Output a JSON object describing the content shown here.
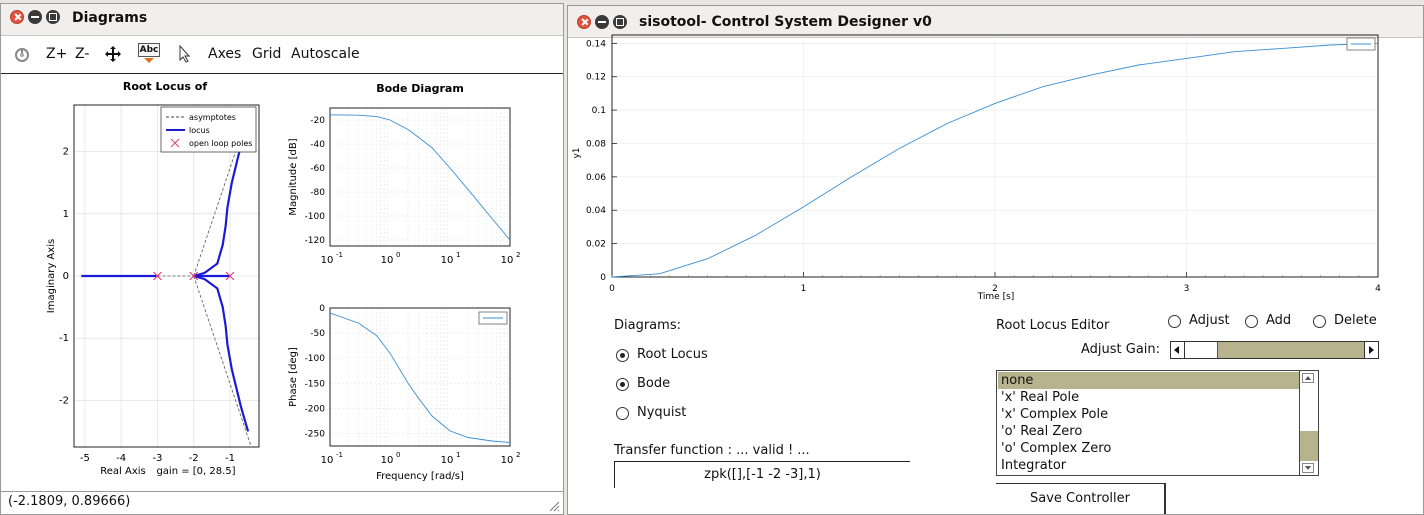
{
  "left_window": {
    "title": "Diagrams",
    "toolbar": {
      "zoom_in": "Z+",
      "zoom_out": "Z-",
      "axes": "Axes",
      "grid": "Grid",
      "autoscale": "Autoscale",
      "text_tool_label": "Abc"
    },
    "status": "(-2.1809, 0.89666)"
  },
  "root_locus_plot": {
    "title": "Root Locus of",
    "xlabel": "Real Axis",
    "ylabel": "Imaginary Axis",
    "gain_label": "gain = [0, 28.5]",
    "xticks": [
      "-5",
      "-4",
      "-3",
      "-2",
      "-1"
    ],
    "yticks": [
      "2",
      "1",
      "0",
      "-1",
      "-2"
    ],
    "legend": [
      "asymptotes",
      "locus",
      "open loop poles"
    ]
  },
  "bode_plot": {
    "title": "Bode Diagram",
    "mag_ylabel": "Magnitude [dB]",
    "phase_ylabel": "Phase [deg]",
    "xlabel": "Frequency [rad/s]",
    "mag_yticks": [
      "-20",
      "-40",
      "-60",
      "-80",
      "-100",
      "-120"
    ],
    "phase_yticks": [
      "0",
      "-50",
      "-100",
      "-150",
      "-200",
      "-250"
    ],
    "xtick_mantissa": "10",
    "xtick_exponents": [
      "-1",
      "0",
      "1",
      "2"
    ]
  },
  "right_window": {
    "title": "sisotool- Control System Designer v0"
  },
  "step_plot": {
    "ylabel": "y1",
    "xlabel": "Time [s]",
    "yticks": [
      "0.14",
      "0.12",
      "0.1",
      "0.08",
      "0.06",
      "0.04",
      "0.02",
      "0"
    ],
    "xticks": [
      "0",
      "1",
      "2",
      "3",
      "4"
    ]
  },
  "controls": {
    "diagrams_label": "Diagrams:",
    "diagram_options": [
      {
        "label": "Root Locus",
        "selected": true
      },
      {
        "label": "Bode",
        "selected": true
      },
      {
        "label": "Nyquist",
        "selected": false
      }
    ],
    "transfer_label": "Transfer function : ... valid ! ...",
    "transfer_value": "zpk([],[-1 -2 -3],1)",
    "editor_label": "Root Locus Editor",
    "editor_modes": [
      "Adjust",
      "Add",
      "Delete"
    ],
    "adjust_gain_label": "Adjust Gain:",
    "gain_slider_fraction": 0.2,
    "add_list": [
      "none",
      "'x' Real Pole",
      "'x' Complex Pole",
      "'o' Real Zero",
      "'o' Complex Zero",
      "Integrator"
    ],
    "save_button": "Save Controller"
  },
  "chart_data": [
    {
      "type": "line",
      "title": "Root Locus of",
      "xlabel": "Real Axis",
      "ylabel": "Imaginary Axis",
      "xlim": [
        -5.3,
        -0.2
      ],
      "ylim": [
        -2.75,
        2.75
      ],
      "series": [
        {
          "name": "locus",
          "x": [
            -5.1,
            -3.0,
            -3.0,
            -3.0
          ],
          "y": [
            0,
            0,
            0,
            0
          ]
        },
        {
          "name": "locus",
          "x": [
            -2,
            -1.7,
            -1.35,
            -1.2,
            -1.12,
            -1.07,
            -0.95,
            -0.7,
            -0.5
          ],
          "y": [
            0,
            0.05,
            0.2,
            0.5,
            0.8,
            1.1,
            1.5,
            2.1,
            2.45
          ]
        },
        {
          "name": "locus",
          "x": [
            -2,
            -1.7,
            -1.35,
            -1.2,
            -1.12,
            -1.07,
            -0.95,
            -0.7,
            -0.5
          ],
          "y": [
            0,
            -0.05,
            -0.2,
            -0.5,
            -0.8,
            -1.1,
            -1.5,
            -2.1,
            -2.5
          ]
        },
        {
          "name": "open loop poles",
          "x": [
            -3,
            -2,
            -1
          ],
          "y": [
            0,
            0,
            0
          ]
        }
      ]
    },
    {
      "type": "line",
      "title": "Bode Diagram",
      "xlabel": "Frequency [rad/s]",
      "ylabel": "Magnitude [dB]",
      "x": [
        0.1,
        0.3,
        0.6,
        1,
        2,
        3,
        5,
        10,
        20,
        50,
        100
      ],
      "series": [
        {
          "values": [
            -15.7,
            -16,
            -17.2,
            -20,
            -28,
            -34.5,
            -43,
            -60,
            -78,
            -102,
            -120
          ]
        }
      ],
      "ylim": [
        -125,
        -10
      ]
    },
    {
      "type": "line",
      "ylabel": "Phase [deg]",
      "xlabel": "Frequency [rad/s]",
      "x": [
        0.1,
        0.3,
        0.6,
        1,
        2,
        3,
        5,
        10,
        20,
        50,
        100
      ],
      "series": [
        {
          "values": [
            -10,
            -30,
            -55,
            -90,
            -150,
            -180,
            -215,
            -245,
            -258,
            -265,
            -268
          ]
        }
      ],
      "ylim": [
        -275,
        0
      ]
    },
    {
      "type": "line",
      "xlabel": "Time [s]",
      "ylabel": "y1",
      "xlim": [
        0,
        4
      ],
      "ylim": [
        0,
        0.145
      ],
      "x": [
        0,
        0.25,
        0.5,
        0.75,
        1,
        1.25,
        1.5,
        1.75,
        2,
        2.25,
        2.5,
        2.75,
        3,
        3.25,
        3.5,
        3.75,
        4
      ],
      "series": [
        {
          "values": [
            0,
            0.002,
            0.011,
            0.025,
            0.042,
            0.06,
            0.077,
            0.092,
            0.104,
            0.114,
            0.121,
            0.127,
            0.131,
            0.135,
            0.137,
            0.139,
            0.14
          ]
        }
      ]
    }
  ]
}
